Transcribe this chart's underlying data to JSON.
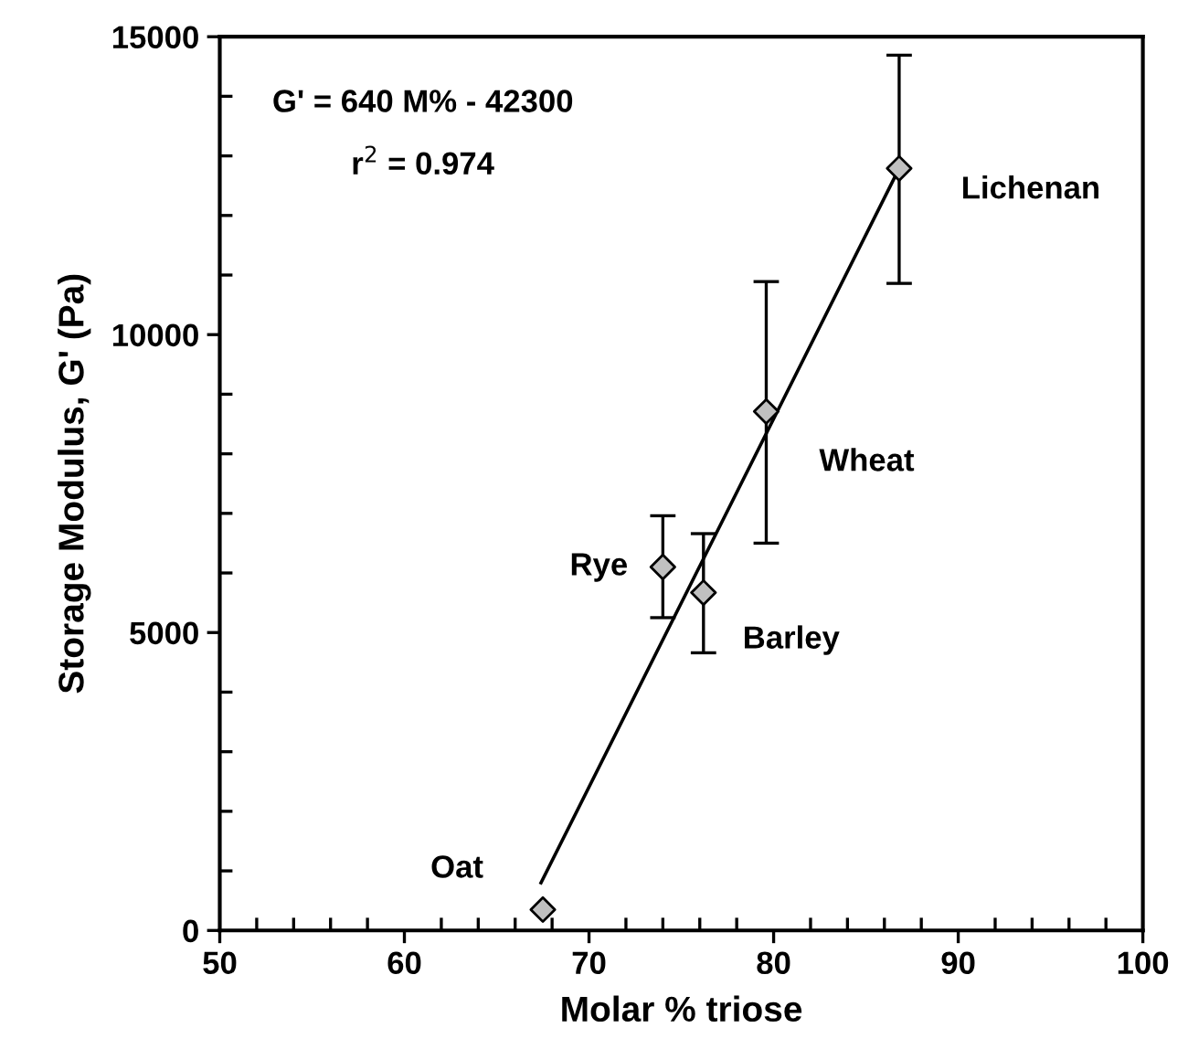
{
  "chart_data": {
    "type": "scatter",
    "xlabel": "Molar % triose",
    "ylabel": "Storage Modulus, G' (Pa)",
    "xlim": [
      50,
      100
    ],
    "ylim": [
      0,
      15000
    ],
    "xticks": [
      50,
      {
        "value": 52,
        "label": null
      },
      {
        "value": 54,
        "label": null
      },
      {
        "value": 56,
        "label": null
      },
      {
        "value": 58,
        "label": null
      },
      60,
      {
        "value": 62,
        "label": null
      },
      {
        "value": 64,
        "label": null
      },
      {
        "value": 66,
        "label": null
      },
      {
        "value": 68,
        "label": null
      },
      70,
      {
        "value": 72,
        "label": null
      },
      {
        "value": 74,
        "label": null
      },
      {
        "value": 76,
        "label": null
      },
      {
        "value": 78,
        "label": null
      },
      80,
      {
        "value": 82,
        "label": null
      },
      {
        "value": 84,
        "label": null
      },
      {
        "value": 86,
        "label": null
      },
      {
        "value": 88,
        "label": null
      },
      90,
      {
        "value": 92,
        "label": null
      },
      {
        "value": 94,
        "label": null
      },
      {
        "value": 96,
        "label": null
      },
      {
        "value": 98,
        "label": null
      },
      100
    ],
    "yticks": [
      0,
      {
        "value": 1000,
        "label": null
      },
      {
        "value": 2000,
        "label": null
      },
      {
        "value": 3000,
        "label": null
      },
      {
        "value": 4000,
        "label": null
      },
      5000,
      {
        "value": 6000,
        "label": null
      },
      {
        "value": 7000,
        "label": null
      },
      {
        "value": 8000,
        "label": null
      },
      {
        "value": 9000,
        "label": null
      },
      10000,
      {
        "value": 11000,
        "label": null
      },
      {
        "value": 12000,
        "label": null
      },
      {
        "value": 13000,
        "label": null
      },
      {
        "value": 14000,
        "label": null
      },
      15000
    ],
    "grid": false,
    "legend": false,
    "series": [
      {
        "marker": "diamond",
        "color": "#c0c0c0",
        "x": [
          67.5,
          74.0,
          76.2,
          79.6,
          86.8
        ],
        "values": [
          350,
          6100,
          5670,
          8710,
          12790
        ],
        "errors": [
          null,
          [
            5250,
            6960
          ],
          [
            4660,
            6660
          ],
          [
            6500,
            10890
          ],
          [
            10860,
            14690
          ]
        ]
      },
      {
        "type": "line",
        "color": "#000000",
        "x": [
          67.4,
          86.8
        ],
        "values": [
          800,
          12790
        ]
      }
    ],
    "annotations": [
      "G' = 640 M% - 42300",
      "r$^{2}$ = 0.974",
      {
        "text": "Oat",
        "x": 67.5,
        "y": 350
      },
      {
        "text": "Rye",
        "x": 74.0,
        "y": 6100
      },
      {
        "text": "Barley",
        "x": 76.2,
        "y": 5670
      },
      {
        "text": "Wheat",
        "x": 79.6,
        "y": 8710
      },
      {
        "text": "Lichenan",
        "x": 86.8,
        "y": 12790
      }
    ]
  }
}
